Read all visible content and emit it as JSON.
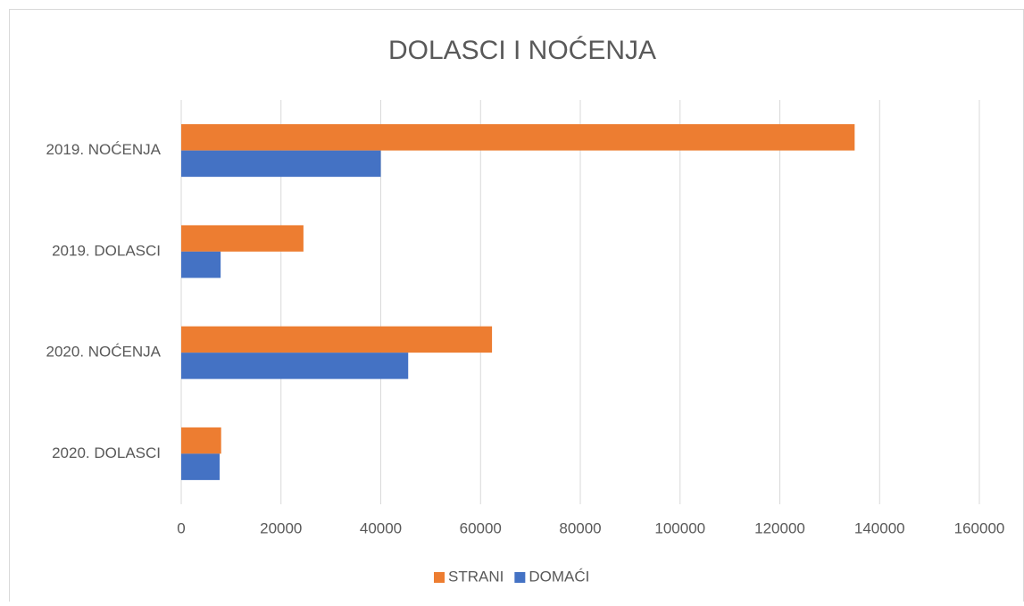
{
  "chart_data": {
    "type": "bar",
    "orientation": "horizontal",
    "title": "DOLASCI I NOĆENJA",
    "categories": [
      "2019. NOĆENJA",
      "2019. DOLASCI",
      "2020. NOĆENJA",
      "2020. DOLASCI"
    ],
    "series": [
      {
        "name": "STRANI",
        "color": "#ed7d31",
        "values": [
          135000,
          24500,
          62300,
          8000
        ]
      },
      {
        "name": "DOMAĆI",
        "color": "#4472c4",
        "values": [
          40000,
          7900,
          45500,
          7700
        ]
      }
    ],
    "xlim": [
      0,
      160000
    ],
    "xticks": [
      0,
      20000,
      40000,
      60000,
      80000,
      100000,
      120000,
      140000,
      160000
    ],
    "grid": true,
    "legend": "bottom"
  }
}
